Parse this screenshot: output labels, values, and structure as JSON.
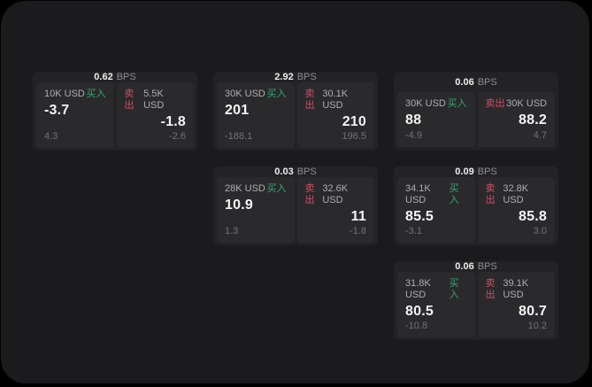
{
  "window": {
    "bg": "#1b1b1d",
    "page_bg": "#000000"
  },
  "colors": {
    "card_bg": "#232325",
    "panel_bg": "#2a2a2c",
    "buy_green": "#35a671",
    "sell_red": "#ce4f66",
    "value_white": "#f4f4f4",
    "amount_gray": "#aeaeb2",
    "delta_gray": "#737377",
    "bps_unit_gray": "#8e8e92"
  },
  "labels": {
    "buy": "买入",
    "sell": "卖出",
    "bps_unit": "BPS"
  },
  "cards": [
    {
      "bps": "0.62",
      "buy": {
        "amount": "10K USD",
        "price": "-3.7",
        "delta": "4.3"
      },
      "sell": {
        "amount": "5.5K USD",
        "price": "-1.8",
        "delta": "-2.6"
      }
    },
    {
      "bps": "2.92",
      "buy": {
        "amount": "30K USD",
        "price": "201",
        "delta": "-188.1"
      },
      "sell": {
        "amount": "30.1K USD",
        "price": "210",
        "delta": "196.5"
      }
    },
    {
      "bps": "0.06",
      "buy": {
        "amount": "30K USD",
        "price": "88",
        "delta": "-4.9"
      },
      "sell": {
        "amount": "30K USD",
        "price": "88.2",
        "delta": "4.7"
      }
    },
    {
      "bps": "0.03",
      "buy": {
        "amount": "28K USD",
        "price": "10.9",
        "delta": "1.3"
      },
      "sell": {
        "amount": "32.6K USD",
        "price": "11",
        "delta": "-1.8"
      }
    },
    {
      "bps": "0.09",
      "buy": {
        "amount": "34.1K USD",
        "price": "85.5",
        "delta": "-3.1"
      },
      "sell": {
        "amount": "32.8K USD",
        "price": "85.8",
        "delta": "3.0"
      }
    },
    {
      "bps": "0.06",
      "buy": {
        "amount": "31.8K USD",
        "price": "80.5",
        "delta": "-10.8"
      },
      "sell": {
        "amount": "39.1K USD",
        "price": "80.7",
        "delta": "10.2"
      }
    }
  ]
}
